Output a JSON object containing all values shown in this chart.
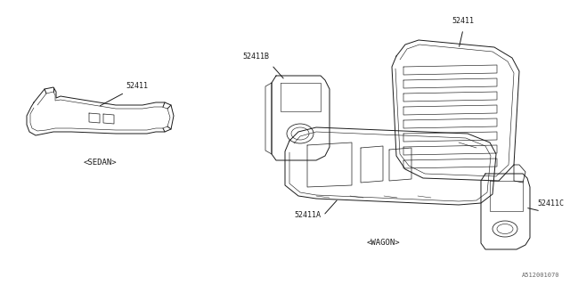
{
  "bg_color": "#ffffff",
  "line_color": "#1a1a1a",
  "line_width": 0.7,
  "part_number_color": "#1a1a1a",
  "label_fontsize": 6.0,
  "caption_fontsize": 6.5,
  "diagram_id": "A512001070",
  "sedan_label": "<SEDAN>",
  "wagon_label": "<WAGON>",
  "parts": {
    "sedan_part": "52411",
    "wagon_main": "52411",
    "wagon_a": "52411A",
    "wagon_b": "52411B",
    "wagon_c": "52411C"
  }
}
